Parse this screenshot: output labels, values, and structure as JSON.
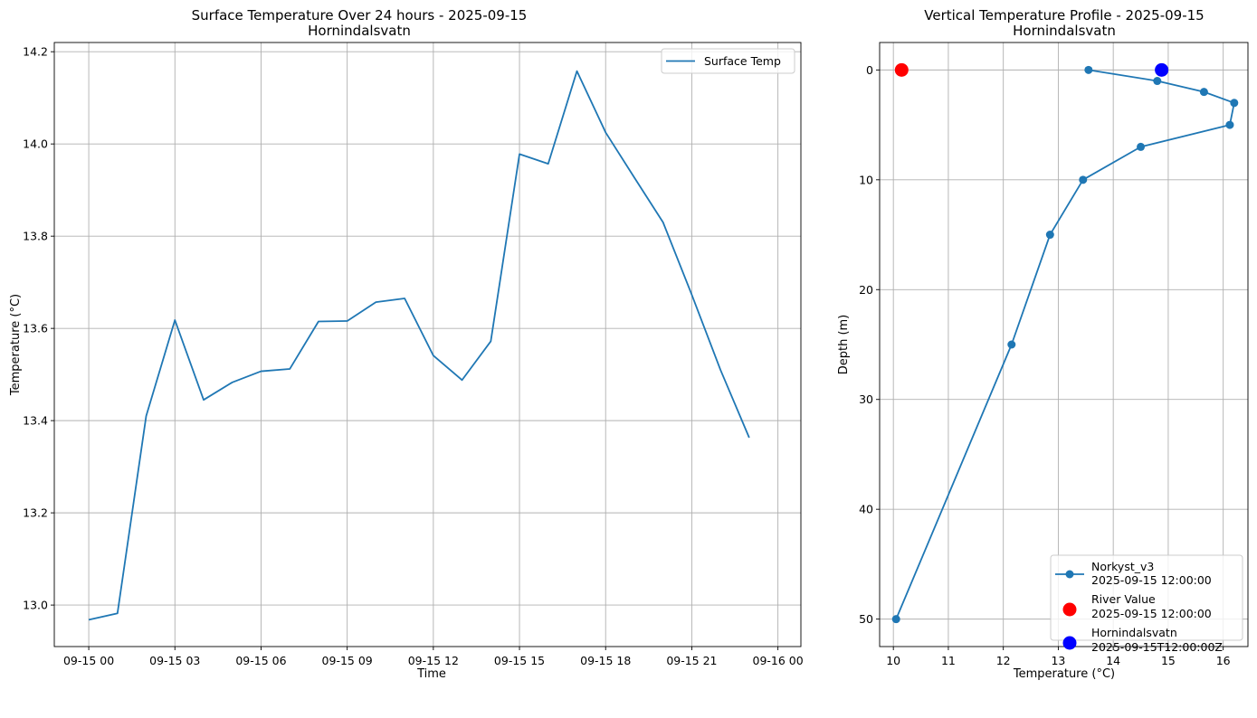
{
  "figure": {
    "background": "#ffffff"
  },
  "chart_data": [
    {
      "type": "line",
      "title": "Surface Temperature Over 24 hours - 2025-09-15",
      "subtitle": "Hornindalsvatn",
      "xlabel": "Time",
      "ylabel": "Temperature (°C)",
      "x_hours": [
        0,
        1,
        2,
        3,
        4,
        5,
        6,
        7,
        8,
        9,
        10,
        11,
        12,
        13,
        14,
        15,
        16,
        17,
        18,
        19,
        20,
        21,
        22,
        23
      ],
      "series": [
        {
          "name": "Surface Temp",
          "color": "#1f77b4",
          "values": [
            12.968,
            12.982,
            13.41,
            13.618,
            13.445,
            13.483,
            13.507,
            13.512,
            13.615,
            13.616,
            13.657,
            13.665,
            13.541,
            13.488,
            13.572,
            13.978,
            13.957,
            14.158,
            14.025,
            13.927,
            13.83,
            13.673,
            13.51,
            13.363
          ]
        }
      ],
      "xlim_hours": [
        -1.2,
        24.8
      ],
      "ylim": [
        12.91,
        14.22
      ],
      "xticks_hours": [
        0,
        3,
        6,
        9,
        12,
        15,
        18,
        21,
        24
      ],
      "xtick_labels": [
        "09-15 00",
        "09-15 03",
        "09-15 06",
        "09-15 09",
        "09-15 12",
        "09-15 15",
        "09-15 18",
        "09-15 21",
        "09-16 00"
      ],
      "yticks": [
        13.0,
        13.2,
        13.4,
        13.6,
        13.8,
        14.0,
        14.2
      ],
      "ytick_labels": [
        "13.0",
        "13.2",
        "13.4",
        "13.6",
        "13.8",
        "14.0",
        "14.2"
      ],
      "grid": true,
      "legend_position": "upper-right"
    },
    {
      "type": "line",
      "title": "Vertical Temperature Profile - 2025-09-15",
      "subtitle": "Hornindalsvatn",
      "xlabel": "Temperature (°C)",
      "ylabel": "Depth (m)",
      "y_inverted": true,
      "series": [
        {
          "name": "Norkyst_v3",
          "name_line2": "2025-09-15 12:00:00",
          "color": "#1f77b4",
          "marker": "circle",
          "temperature": [
            13.55,
            14.8,
            15.65,
            16.2,
            16.12,
            14.5,
            13.45,
            12.85,
            12.15,
            10.05
          ],
          "depth": [
            0,
            1,
            2,
            3,
            5,
            7,
            10,
            15,
            25,
            50
          ]
        },
        {
          "name": "River Value",
          "name_line2": "2025-09-15 12:00:00",
          "color": "#ff0000",
          "marker": "circle-large",
          "temperature": [
            10.15
          ],
          "depth": [
            0
          ]
        },
        {
          "name": "Hornindalsvatn",
          "name_line2": "2025-09-15T12:00:00Z",
          "color": "#0000ff",
          "marker": "circle-large",
          "temperature": [
            14.88
          ],
          "depth": [
            0
          ]
        }
      ],
      "xlim": [
        9.75,
        16.45
      ],
      "ylim": [
        -2.5,
        52.5
      ],
      "xticks": [
        10,
        11,
        12,
        13,
        14,
        15,
        16
      ],
      "xtick_labels": [
        "10",
        "11",
        "12",
        "13",
        "14",
        "15",
        "16"
      ],
      "yticks": [
        0,
        10,
        20,
        30,
        40,
        50
      ],
      "ytick_labels": [
        "0",
        "10",
        "20",
        "30",
        "40",
        "50"
      ],
      "grid": true,
      "legend_position": "lower-right"
    }
  ]
}
